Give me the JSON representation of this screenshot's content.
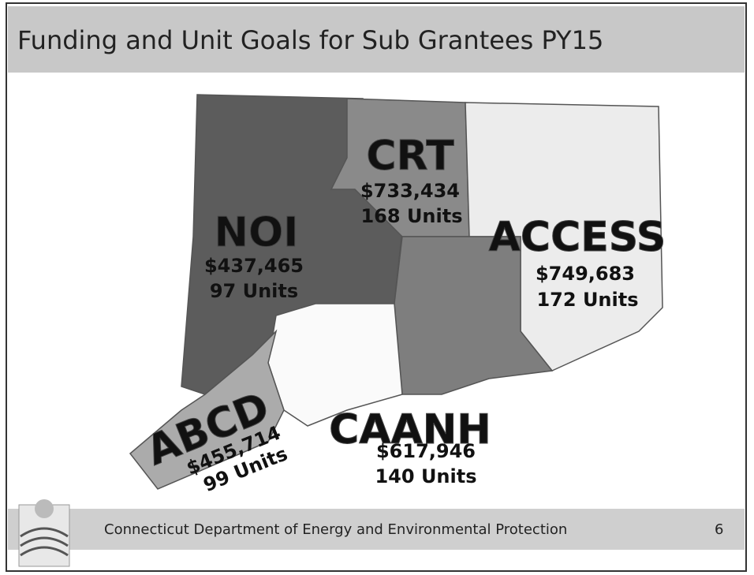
{
  "title": "Funding and Unit Goals for Sub Grantees PY15",
  "regions": [
    {
      "name": "NOI",
      "amount": "$437,465",
      "units": "97 Units"
    },
    {
      "name": "CRT",
      "amount": "$733,434",
      "units": "168 Units"
    },
    {
      "name": "ACCESS",
      "amount": "$749,683",
      "units": "172 Units"
    },
    {
      "name": "ABCD",
      "amount": "$455,714",
      "units": "99 Units"
    },
    {
      "name": "CAANH",
      "amount": "$617,946",
      "units": "140 Units"
    }
  ],
  "footer": {
    "text": "Connecticut Department of Energy and Environmental Protection",
    "page": "6"
  }
}
